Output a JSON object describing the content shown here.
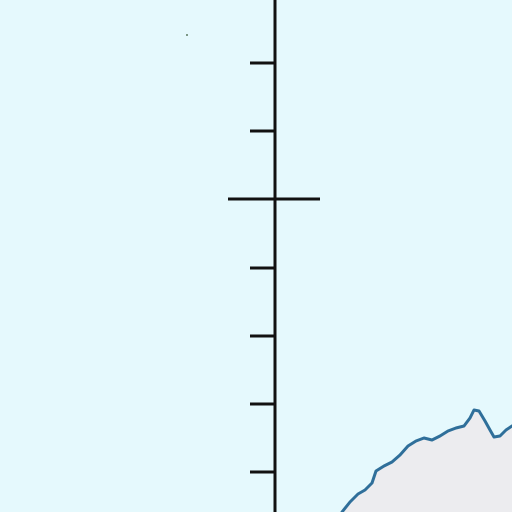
{
  "map": {
    "colors": {
      "water": "#e5f9fd",
      "land": "#ececef",
      "coastline": "#2f6f9a",
      "scale_bar": "#111111",
      "speck": "#5a7a60"
    },
    "scale_bar": {
      "orientation": "vertical",
      "labels": []
    }
  }
}
